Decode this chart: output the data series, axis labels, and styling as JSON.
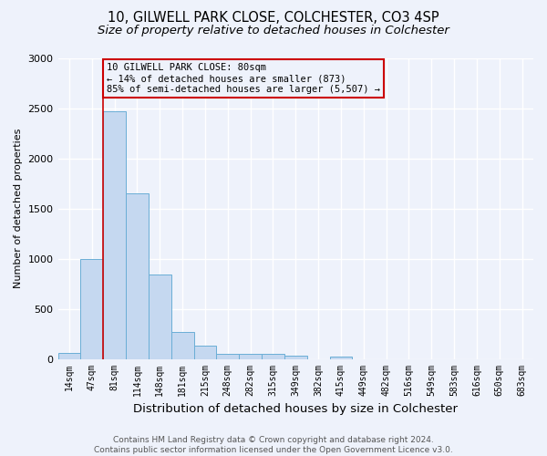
{
  "title": "10, GILWELL PARK CLOSE, COLCHESTER, CO3 4SP",
  "subtitle": "Size of property relative to detached houses in Colchester",
  "xlabel": "Distribution of detached houses by size in Colchester",
  "ylabel": "Number of detached properties",
  "bin_labels": [
    "14sqm",
    "47sqm",
    "81sqm",
    "114sqm",
    "148sqm",
    "181sqm",
    "215sqm",
    "248sqm",
    "282sqm",
    "315sqm",
    "349sqm",
    "382sqm",
    "415sqm",
    "449sqm",
    "482sqm",
    "516sqm",
    "549sqm",
    "583sqm",
    "616sqm",
    "650sqm",
    "683sqm"
  ],
  "bin_values": [
    60,
    1000,
    2470,
    1650,
    840,
    270,
    130,
    55,
    55,
    50,
    35,
    0,
    25,
    0,
    0,
    0,
    0,
    0,
    0,
    0,
    0
  ],
  "bar_color": "#c5d8f0",
  "bar_edge_color": "#6aaed6",
  "property_line_x": 2,
  "property_line_color": "#cc0000",
  "annotation_text": "10 GILWELL PARK CLOSE: 80sqm\n← 14% of detached houses are smaller (873)\n85% of semi-detached houses are larger (5,507) →",
  "annotation_box_color": "#cc0000",
  "ylim": [
    0,
    3000
  ],
  "yticks": [
    0,
    500,
    1000,
    1500,
    2000,
    2500,
    3000
  ],
  "footer": "Contains HM Land Registry data © Crown copyright and database right 2024.\nContains public sector information licensed under the Open Government Licence v3.0.",
  "background_color": "#eef2fb",
  "grid_color": "#ffffff",
  "title_fontsize": 10.5,
  "subtitle_fontsize": 9.5,
  "xlabel_fontsize": 9.5,
  "ylabel_fontsize": 8,
  "tick_fontsize": 7,
  "footer_fontsize": 6.5,
  "ann_fontsize": 7.5
}
